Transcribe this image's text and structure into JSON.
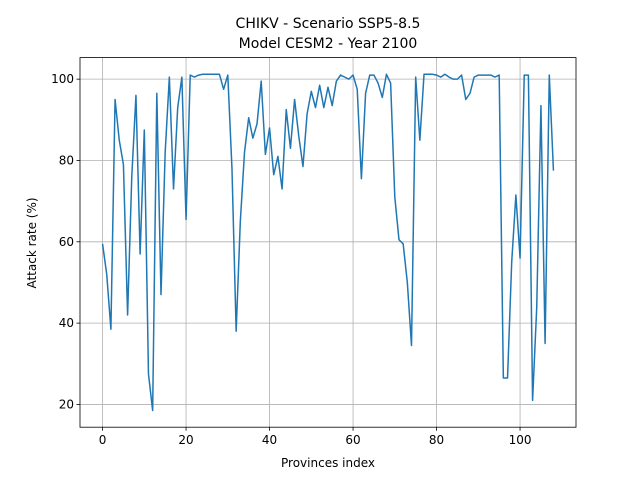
{
  "chart_data": {
    "type": "line",
    "title": "CHIKV - Scenario SSP5-8.5",
    "subtitle": "Model CESM2 - Year 2100",
    "x_label": "Provinces index",
    "y_label": "Attack rate (%)",
    "x": [
      0,
      1,
      2,
      3,
      4,
      5,
      6,
      7,
      8,
      9,
      10,
      11,
      12,
      13,
      14,
      15,
      16,
      17,
      18,
      19,
      20,
      21,
      22,
      23,
      24,
      25,
      26,
      27,
      28,
      29,
      30,
      31,
      32,
      33,
      34,
      35,
      36,
      37,
      38,
      39,
      40,
      41,
      42,
      43,
      44,
      45,
      46,
      47,
      48,
      49,
      50,
      51,
      52,
      53,
      54,
      55,
      56,
      57,
      58,
      59,
      60,
      61,
      62,
      63,
      64,
      65,
      66,
      67,
      68,
      69,
      70,
      71,
      72,
      73,
      74,
      75,
      76,
      77,
      78,
      79,
      80,
      81,
      82,
      83,
      84,
      85,
      86,
      87,
      88,
      89,
      90,
      91,
      92,
      93,
      94,
      95,
      96,
      97,
      98,
      99,
      100,
      101,
      102,
      103,
      104,
      105,
      106,
      107,
      108
    ],
    "series": [
      {
        "name": "attack-rate",
        "color": "#1f77b4",
        "values": [
          59.5,
          52,
          38.5,
          95,
          85,
          79,
          42,
          76,
          96,
          57,
          87.5,
          27.5,
          18.5,
          96.5,
          47,
          82,
          100.5,
          73,
          93,
          100.5,
          65.5,
          101,
          100.5,
          101,
          101.2,
          101.2,
          101.2,
          101.2,
          101.2,
          97.5,
          101,
          78,
          38,
          65,
          82,
          90.5,
          85.5,
          89,
          99.5,
          81.5,
          88,
          76.5,
          81,
          73,
          92.5,
          83,
          95,
          86,
          78.5,
          91.5,
          97,
          93,
          98.5,
          93,
          98,
          93.5,
          99.5,
          101,
          100.5,
          100,
          101,
          97.5,
          75.5,
          96.5,
          101,
          101,
          99,
          95.5,
          101.2,
          99,
          71,
          60.5,
          59.5,
          50,
          34.5,
          100.5,
          85,
          101.2,
          101.2,
          101.2,
          101,
          100.5,
          101.2,
          100.5,
          100,
          100,
          101,
          95,
          96.5,
          100.5,
          101,
          101,
          101,
          101,
          100.5,
          101,
          26.5,
          26.5,
          55,
          71.5,
          56,
          101,
          101,
          21,
          44,
          93.5,
          35,
          101,
          77.5
        ]
      }
    ],
    "xlim": [
      -5.4,
      113.4
    ],
    "ylim": [
      14.4,
      105.3
    ],
    "xticks": [
      0,
      20,
      40,
      60,
      80,
      100
    ],
    "yticks": [
      20,
      40,
      60,
      80,
      100
    ],
    "grid": true
  }
}
